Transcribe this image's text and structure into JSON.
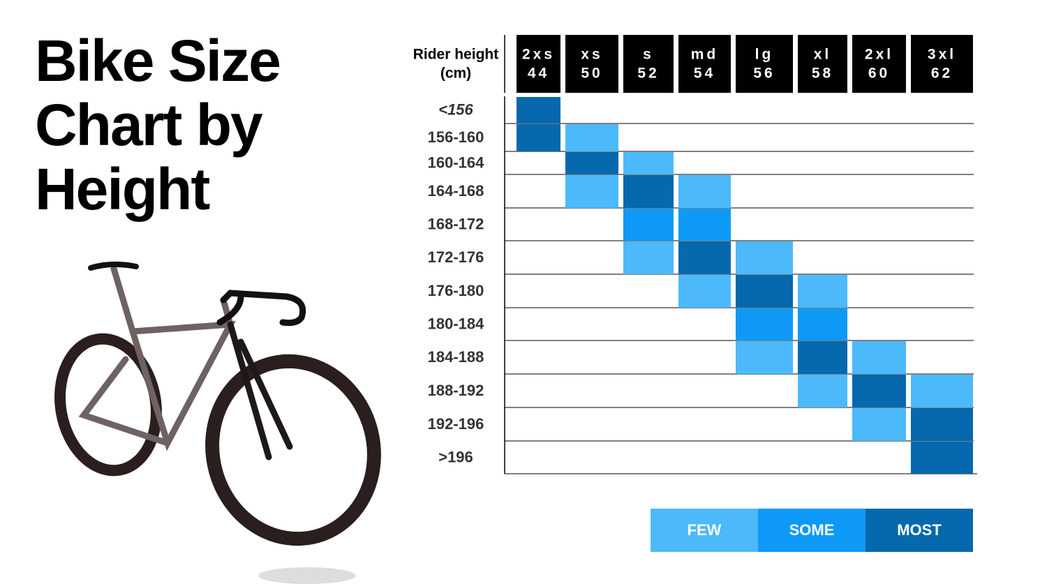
{
  "title": [
    "Bike Size",
    "Chart by",
    "Height"
  ],
  "table": {
    "header_label": [
      "Rider height",
      "(cm)"
    ],
    "columns": [
      {
        "size": "2xs",
        "number": "44"
      },
      {
        "size": "xs",
        "number": "50"
      },
      {
        "size": "s",
        "number": "52"
      },
      {
        "size": "md",
        "number": "54"
      },
      {
        "size": "lg",
        "number": "56"
      },
      {
        "size": "xl",
        "number": "58"
      },
      {
        "size": "2xl",
        "number": "60"
      },
      {
        "size": "3xl",
        "number": "62"
      }
    ],
    "rows": [
      {
        "label": "<156",
        "cells": [
          "MOST",
          null,
          null,
          null,
          null,
          null,
          null,
          null
        ]
      },
      {
        "label": "156-160",
        "cells": [
          "MOST",
          "FEW",
          null,
          null,
          null,
          null,
          null,
          null
        ]
      },
      {
        "label": "160-164",
        "cells": [
          null,
          "MOST",
          "FEW",
          null,
          null,
          null,
          null,
          null
        ]
      },
      {
        "label": "164-168",
        "cells": [
          null,
          "FEW",
          "MOST",
          "FEW",
          null,
          null,
          null,
          null
        ]
      },
      {
        "label": "168-172",
        "cells": [
          null,
          null,
          "SOME",
          "SOME",
          null,
          null,
          null,
          null
        ]
      },
      {
        "label": "172-176",
        "cells": [
          null,
          null,
          "FEW",
          "MOST",
          "FEW",
          null,
          null,
          null
        ]
      },
      {
        "label": "176-180",
        "cells": [
          null,
          null,
          null,
          "FEW",
          "MOST",
          "FEW",
          null,
          null
        ]
      },
      {
        "label": "180-184",
        "cells": [
          null,
          null,
          null,
          null,
          "SOME",
          "SOME",
          null,
          null
        ]
      },
      {
        "label": "184-188",
        "cells": [
          null,
          null,
          null,
          null,
          "FEW",
          "MOST",
          "FEW",
          null
        ]
      },
      {
        "label": "188-192",
        "cells": [
          null,
          null,
          null,
          null,
          null,
          "FEW",
          "MOST",
          "FEW"
        ]
      },
      {
        "label": "192-196",
        "cells": [
          null,
          null,
          null,
          null,
          null,
          null,
          "FEW",
          "MOST"
        ]
      },
      {
        "label": ">196",
        "cells": [
          null,
          null,
          null,
          null,
          null,
          null,
          null,
          "MOST"
        ]
      }
    ]
  },
  "legend": [
    {
      "label": "FEW",
      "color": "#4cb9fb"
    },
    {
      "label": "SOME",
      "color": "#0e99f7"
    },
    {
      "label": "MOST",
      "color": "#0668ad"
    }
  ]
}
